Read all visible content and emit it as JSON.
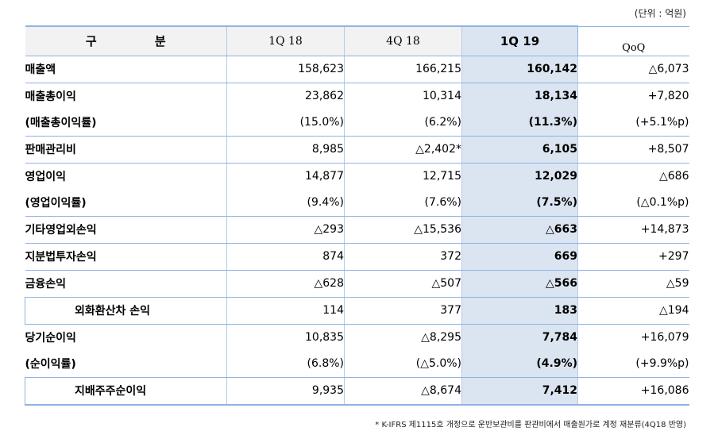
{
  "unit_note": "(단위 : 억원)",
  "header": {
    "gubun": "구 분",
    "c1": "1Q 18",
    "c2": "4Q 18",
    "c3": "1Q 19",
    "c4": "QoQ"
  },
  "rows": [
    {
      "label": "매출액",
      "v1": "158,623",
      "v2": "166,215",
      "v3": "160,142",
      "v4": "△6,073"
    },
    {
      "label": "매출총이익",
      "v1": "23,862",
      "v2": "10,314",
      "v3": "18,134",
      "v4": "+7,820"
    },
    {
      "label": "(매출총이익률)",
      "v1": "(15.0%)",
      "v2": "(6.2%)",
      "v3": "(11.3%)",
      "v4": "(+5.1%p)"
    },
    {
      "label": "판매관리비",
      "v1": "8,985",
      "v2": "△2,402*",
      "v3": "6,105",
      "v4": "+8,507"
    },
    {
      "label": "영업이익",
      "v1": "14,877",
      "v2": "12,715",
      "v3": "12,029",
      "v4": "△686"
    },
    {
      "label": "(영업이익률)",
      "v1": "(9.4%)",
      "v2": "(7.6%)",
      "v3": "(7.5%)",
      "v4": "(△0.1%p)"
    },
    {
      "label": "기타영업외손익",
      "v1": "△293",
      "v2": "△15,536",
      "v3": "△663",
      "v4": "+14,873"
    },
    {
      "label": "지분법투자손익",
      "v1": "874",
      "v2": "372",
      "v3": "669",
      "v4": "+297"
    },
    {
      "label": "금융손익",
      "v1": "△628",
      "v2": "△507",
      "v3": "△566",
      "v4": "△59"
    },
    {
      "label": "외화환산차 손익",
      "v1": "114",
      "v2": "377",
      "v3": "183",
      "v4": "△194"
    },
    {
      "label": "당기순이익",
      "v1": "10,835",
      "v2": "△8,295",
      "v3": "7,784",
      "v4": "+16,079"
    },
    {
      "label": "(순이익률)",
      "v1": "(6.8%)",
      "v2": "(△5.0%)",
      "v3": "(4.9%)",
      "v4": "(+9.9%p)"
    },
    {
      "label": "지배주주순이익",
      "v1": "9,935",
      "v2": "△8,674",
      "v3": "7,412",
      "v4": "+16,086"
    }
  ],
  "footnote": "* K-IFRS 제1115호 개정으로 운반보관비를 판관비에서 매출원가로 계정 재분류(4Q18 반영)",
  "colors": {
    "border": "#8db3e2",
    "highlight": "#dbe5f1",
    "header_bg": "#f2f2f2"
  }
}
